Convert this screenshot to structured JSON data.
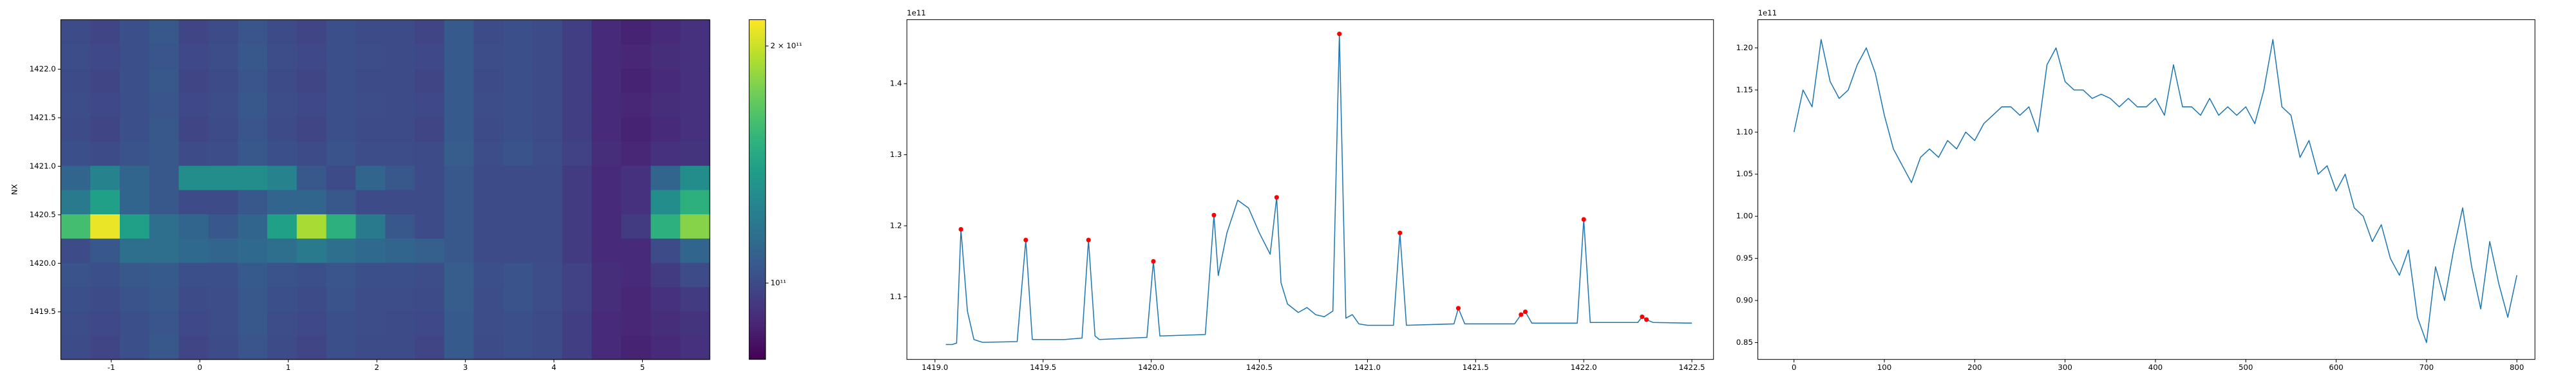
{
  "chart_data": [
    {
      "type": "heatmap",
      "ylabel": "NX",
      "colormap": "viridis",
      "xlim": [
        -1.57,
        5.76
      ],
      "ylim": [
        1419.01,
        1422.51
      ],
      "xticks": [
        -1,
        0,
        1,
        2,
        3,
        4,
        5
      ],
      "yticks": [
        1419.5,
        {
          "value": 1420,
          "label": "1420.0"
        },
        1420.5,
        {
          "value": 1421,
          "label": "1421.0"
        },
        1421.5,
        {
          "value": 1422,
          "label": "1422.0"
        }
      ],
      "z": [
        [
          100000000000.0,
          98000000000.0,
          102000000000.0,
          105000000000.0,
          98000000000.0,
          100000000000.0,
          104000000000.0,
          100000000000.0,
          98000000000.0,
          102000000000.0,
          100000000000.0,
          100000000000.0,
          98000000000.0,
          106000000000.0,
          100000000000.0,
          102000000000.0,
          100000000000.0,
          96000000000.0,
          90000000000.0,
          88000000000.0,
          90000000000.0,
          92000000000.0
        ],
        [
          101000000000.0,
          99000000000.0,
          102000000000.0,
          104000000000.0,
          99000000000.0,
          101000000000.0,
          105000000000.0,
          101000000000.0,
          99000000000.0,
          102000000000.0,
          101000000000.0,
          100000000000.0,
          99000000000.0,
          106000000000.0,
          101000000000.0,
          102000000000.0,
          100000000000.0,
          96000000000.0,
          90000000000.0,
          89000000000.0,
          91000000000.0,
          93000000000.0
        ],
        [
          102000000000.0,
          100000000000.0,
          103000000000.0,
          105000000000.0,
          100000000000.0,
          101000000000.0,
          105000000000.0,
          102000000000.0,
          100000000000.0,
          103000000000.0,
          101000000000.0,
          101000000000.0,
          100000000000.0,
          107000000000.0,
          101000000000.0,
          103000000000.0,
          101000000000.0,
          97000000000.0,
          91000000000.0,
          89000000000.0,
          92000000000.0,
          95000000000.0
        ],
        [
          103000000000.0,
          102000000000.0,
          105000000000.0,
          106000000000.0,
          102000000000.0,
          102000000000.0,
          106000000000.0,
          103000000000.0,
          102000000000.0,
          104000000000.0,
          102000000000.0,
          102000000000.0,
          101000000000.0,
          107000000000.0,
          102000000000.0,
          103000000000.0,
          101000000000.0,
          97000000000.0,
          91000000000.0,
          90000000000.0,
          95000000000.0,
          100000000000.0
        ],
        [
          100000000000.0,
          105000000000.0,
          115000000000.0,
          115000000000.0,
          112000000000.0,
          110000000000.0,
          112000000000.0,
          115000000000.0,
          120000000000.0,
          115000000000.0,
          112000000000.0,
          110000000000.0,
          108000000000.0,
          105000000000.0,
          100000000000.0,
          100000000000.0,
          100000000000.0,
          95000000000.0,
          90000000000.0,
          90000000000.0,
          100000000000.0,
          110000000000.0
        ],
        [
          160000000000.0,
          210000000000.0,
          140000000000.0,
          115000000000.0,
          110000000000.0,
          105000000000.0,
          110000000000.0,
          140000000000.0,
          190000000000.0,
          150000000000.0,
          120000000000.0,
          105000000000.0,
          100000000000.0,
          105000000000.0,
          100000000000.0,
          100000000000.0,
          100000000000.0,
          95000000000.0,
          90000000000.0,
          95000000000.0,
          150000000000.0,
          180000000000.0
        ],
        [
          120000000000.0,
          140000000000.0,
          110000000000.0,
          105000000000.0,
          100000000000.0,
          100000000000.0,
          105000000000.0,
          110000000000.0,
          110000000000.0,
          105000000000.0,
          100000000000.0,
          100000000000.0,
          100000000000.0,
          105000000000.0,
          100000000000.0,
          100000000000.0,
          100000000000.0,
          95000000000.0,
          90000000000.0,
          92000000000.0,
          130000000000.0,
          150000000000.0
        ],
        [
          110000000000.0,
          125000000000.0,
          110000000000.0,
          105000000000.0,
          130000000000.0,
          130000000000.0,
          130000000000.0,
          125000000000.0,
          105000000000.0,
          100000000000.0,
          110000000000.0,
          105000000000.0,
          100000000000.0,
          105000000000.0,
          100000000000.0,
          100000000000.0,
          100000000000.0,
          95000000000.0,
          90000000000.0,
          92000000000.0,
          110000000000.0,
          130000000000.0
        ],
        [
          102000000000.0,
          100000000000.0,
          103000000000.0,
          105000000000.0,
          100000000000.0,
          101000000000.0,
          105000000000.0,
          102000000000.0,
          100000000000.0,
          103000000000.0,
          101000000000.0,
          101000000000.0,
          100000000000.0,
          107000000000.0,
          101000000000.0,
          103000000000.0,
          101000000000.0,
          97000000000.0,
          91000000000.0,
          89000000000.0,
          92000000000.0,
          93000000000.0
        ],
        [
          100000000000.0,
          98000000000.0,
          102000000000.0,
          105000000000.0,
          98000000000.0,
          100000000000.0,
          104000000000.0,
          100000000000.0,
          98000000000.0,
          102000000000.0,
          100000000000.0,
          100000000000.0,
          98000000000.0,
          106000000000.0,
          100000000000.0,
          102000000000.0,
          100000000000.0,
          96000000000.0,
          90000000000.0,
          88000000000.0,
          90000000000.0,
          92000000000.0
        ],
        [
          101000000000.0,
          99000000000.0,
          102000000000.0,
          104000000000.0,
          99000000000.0,
          101000000000.0,
          105000000000.0,
          101000000000.0,
          99000000000.0,
          102000000000.0,
          101000000000.0,
          100000000000.0,
          99000000000.0,
          106000000000.0,
          101000000000.0,
          102000000000.0,
          100000000000.0,
          96000000000.0,
          90000000000.0,
          89000000000.0,
          91000000000.0,
          92000000000.0
        ],
        [
          100000000000.0,
          98000000000.0,
          102000000000.0,
          105000000000.0,
          98000000000.0,
          100000000000.0,
          104000000000.0,
          100000000000.0,
          98000000000.0,
          102000000000.0,
          100000000000.0,
          100000000000.0,
          98000000000.0,
          106000000000.0,
          100000000000.0,
          102000000000.0,
          100000000000.0,
          96000000000.0,
          90000000000.0,
          88000000000.0,
          90000000000.0,
          92000000000.0
        ],
        [
          101000000000.0,
          99000000000.0,
          102000000000.0,
          104000000000.0,
          99000000000.0,
          101000000000.0,
          105000000000.0,
          101000000000.0,
          99000000000.0,
          102000000000.0,
          101000000000.0,
          100000000000.0,
          99000000000.0,
          106000000000.0,
          101000000000.0,
          102000000000.0,
          100000000000.0,
          96000000000.0,
          90000000000.0,
          89000000000.0,
          91000000000.0,
          92000000000.0
        ],
        [
          100000000000.0,
          98000000000.0,
          102000000000.0,
          105000000000.0,
          98000000000.0,
          100000000000.0,
          104000000000.0,
          100000000000.0,
          98000000000.0,
          102000000000.0,
          100000000000.0,
          100000000000.0,
          98000000000.0,
          106000000000.0,
          100000000000.0,
          102000000000.0,
          100000000000.0,
          96000000000.0,
          90000000000.0,
          88000000000.0,
          90000000000.0,
          92000000000.0
        ]
      ],
      "colorbar": {
        "scale": "log",
        "lim": [
          80000000000.0,
          216000000000.0
        ],
        "ticks": [
          {
            "value": 100000000000.0,
            "label": "10¹¹"
          },
          {
            "value": 200000000000.0,
            "label": "2 × 10¹¹"
          }
        ]
      }
    },
    {
      "type": "line",
      "offset_text": "1e11",
      "color": "#1f77b4",
      "xlim": [
        1418.87,
        1422.6
      ],
      "ylim": [
        1.012,
        1.49
      ],
      "xticks": [
        {
          "value": 1419,
          "label": "1419.0"
        },
        1419.5,
        {
          "value": 1420,
          "label": "1420.0"
        },
        1420.5,
        {
          "value": 1421,
          "label": "1421.0"
        },
        1421.5,
        {
          "value": 1422,
          "label": "1422.0"
        },
        1422.5
      ],
      "yticks": [
        1.1,
        1.2,
        1.3,
        1.4
      ],
      "x": [
        1419.05,
        1419.08,
        1419.1,
        1419.12,
        1419.15,
        1419.18,
        1419.22,
        1419.38,
        1419.42,
        1419.45,
        1419.6,
        1419.68,
        1419.71,
        1419.74,
        1419.76,
        1419.98,
        1420.01,
        1420.04,
        1420.25,
        1420.29,
        1420.31,
        1420.35,
        1420.4,
        1420.45,
        1420.5,
        1420.55,
        1420.58,
        1420.6,
        1420.63,
        1420.68,
        1420.72,
        1420.76,
        1420.8,
        1420.84,
        1420.87,
        1420.9,
        1420.93,
        1420.96,
        1421.0,
        1421.12,
        1421.15,
        1421.18,
        1421.4,
        1421.42,
        1421.45,
        1421.68,
        1421.71,
        1421.73,
        1421.76,
        1421.97,
        1422.0,
        1422.03,
        1422.25,
        1422.27,
        1422.29,
        1422.32,
        1422.5
      ],
      "values": [
        1.033,
        1.033,
        1.035,
        1.195,
        1.08,
        1.04,
        1.036,
        1.037,
        1.18,
        1.04,
        1.04,
        1.042,
        1.18,
        1.045,
        1.04,
        1.043,
        1.15,
        1.045,
        1.047,
        1.215,
        1.13,
        1.19,
        1.236,
        1.225,
        1.19,
        1.16,
        1.24,
        1.12,
        1.09,
        1.078,
        1.085,
        1.075,
        1.072,
        1.08,
        1.47,
        1.07,
        1.075,
        1.062,
        1.06,
        1.06,
        1.19,
        1.06,
        1.062,
        1.084,
        1.062,
        1.062,
        1.075,
        1.079,
        1.063,
        1.063,
        1.209,
        1.064,
        1.064,
        1.072,
        1.068,
        1.064,
        1.063
      ],
      "peaks": {
        "color": "red",
        "x": [
          1419.12,
          1419.42,
          1419.71,
          1420.01,
          1420.29,
          1420.58,
          1420.87,
          1421.15,
          1421.42,
          1421.71,
          1421.73,
          1422.0,
          1422.27,
          1422.29
        ],
        "values": [
          1.195,
          1.18,
          1.18,
          1.15,
          1.215,
          1.24,
          1.47,
          1.19,
          1.084,
          1.075,
          1.079,
          1.209,
          1.072,
          1.068
        ]
      }
    },
    {
      "type": "line",
      "offset_text": "1e11",
      "color": "#1f77b4",
      "xlim": [
        -40,
        820
      ],
      "ylim": [
        0.83,
        1.2335
      ],
      "xticks": [
        0,
        100,
        200,
        300,
        400,
        500,
        600,
        700,
        800
      ],
      "yticks": [
        {
          "value": 1.2,
          "label": "1.20"
        },
        1.15,
        {
          "value": 1.1,
          "label": "1.10"
        },
        1.05,
        {
          "value": 1.0,
          "label": "1.00"
        },
        0.95,
        {
          "value": 0.9,
          "label": "0.90"
        },
        0.85
      ],
      "x": [
        0,
        10,
        20,
        30,
        40,
        50,
        60,
        70,
        80,
        90,
        100,
        110,
        120,
        130,
        140,
        150,
        160,
        170,
        180,
        190,
        200,
        210,
        220,
        230,
        240,
        250,
        260,
        270,
        280,
        290,
        300,
        310,
        320,
        330,
        340,
        350,
        360,
        370,
        380,
        390,
        400,
        410,
        420,
        430,
        440,
        450,
        460,
        470,
        480,
        490,
        500,
        510,
        520,
        530,
        540,
        550,
        560,
        570,
        580,
        590,
        600,
        610,
        620,
        630,
        640,
        650,
        660,
        670,
        680,
        690,
        700,
        710,
        720,
        730,
        740,
        750,
        760,
        770,
        780,
        790,
        800
      ],
      "values": [
        1.1,
        1.15,
        1.13,
        1.21,
        1.16,
        1.14,
        1.15,
        1.18,
        1.2,
        1.17,
        1.12,
        1.08,
        1.06,
        1.04,
        1.07,
        1.08,
        1.07,
        1.09,
        1.08,
        1.1,
        1.09,
        1.11,
        1.12,
        1.13,
        1.13,
        1.12,
        1.13,
        1.1,
        1.18,
        1.2,
        1.16,
        1.15,
        1.15,
        1.14,
        1.145,
        1.14,
        1.13,
        1.14,
        1.13,
        1.13,
        1.14,
        1.12,
        1.18,
        1.13,
        1.13,
        1.12,
        1.14,
        1.12,
        1.13,
        1.12,
        1.13,
        1.11,
        1.15,
        1.21,
        1.13,
        1.12,
        1.07,
        1.09,
        1.05,
        1.06,
        1.03,
        1.05,
        1.01,
        1.0,
        0.97,
        0.99,
        0.95,
        0.93,
        0.96,
        0.88,
        0.85,
        0.94,
        0.9,
        0.96,
        1.01,
        0.94,
        0.89,
        0.97,
        0.92,
        0.88,
        0.93
      ]
    }
  ]
}
